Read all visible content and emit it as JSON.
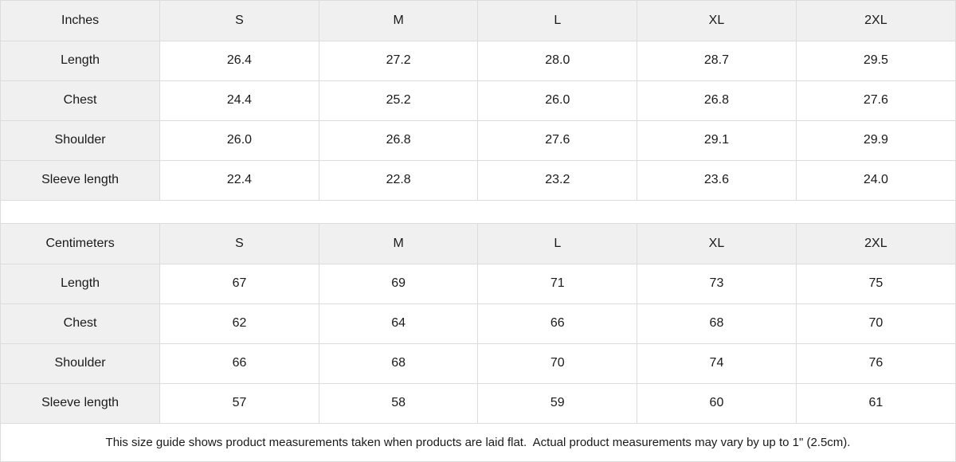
{
  "theme": {
    "background": "#ffffff",
    "header_bg": "#f0f0f0",
    "border_color": "#dcdcdc",
    "text_color": "#1a1a1a"
  },
  "size_guide": {
    "tables": [
      {
        "unit_label": "Inches",
        "sizes": [
          "S",
          "M",
          "L",
          "XL",
          "2XL"
        ],
        "rows": [
          {
            "label": "Length",
            "values": [
              "26.4",
              "27.2",
              "28.0",
              "28.7",
              "29.5"
            ]
          },
          {
            "label": "Chest",
            "values": [
              "24.4",
              "25.2",
              "26.0",
              "26.8",
              "27.6"
            ]
          },
          {
            "label": "Shoulder",
            "values": [
              "26.0",
              "26.8",
              "27.6",
              "29.1",
              "29.9"
            ]
          },
          {
            "label": "Sleeve length",
            "values": [
              "22.4",
              "22.8",
              "23.2",
              "23.6",
              "24.0"
            ]
          }
        ]
      },
      {
        "unit_label": "Centimeters",
        "sizes": [
          "S",
          "M",
          "L",
          "XL",
          "2XL"
        ],
        "rows": [
          {
            "label": "Length",
            "values": [
              "67",
              "69",
              "71",
              "73",
              "75"
            ]
          },
          {
            "label": "Chest",
            "values": [
              "62",
              "64",
              "66",
              "68",
              "70"
            ]
          },
          {
            "label": "Shoulder",
            "values": [
              "66",
              "68",
              "70",
              "74",
              "76"
            ]
          },
          {
            "label": "Sleeve length",
            "values": [
              "57",
              "58",
              "59",
              "60",
              "61"
            ]
          }
        ]
      }
    ],
    "footnote": "This size guide shows product measurements taken when products are laid flat.  Actual product measurements may vary by up to 1\" (2.5cm)."
  }
}
